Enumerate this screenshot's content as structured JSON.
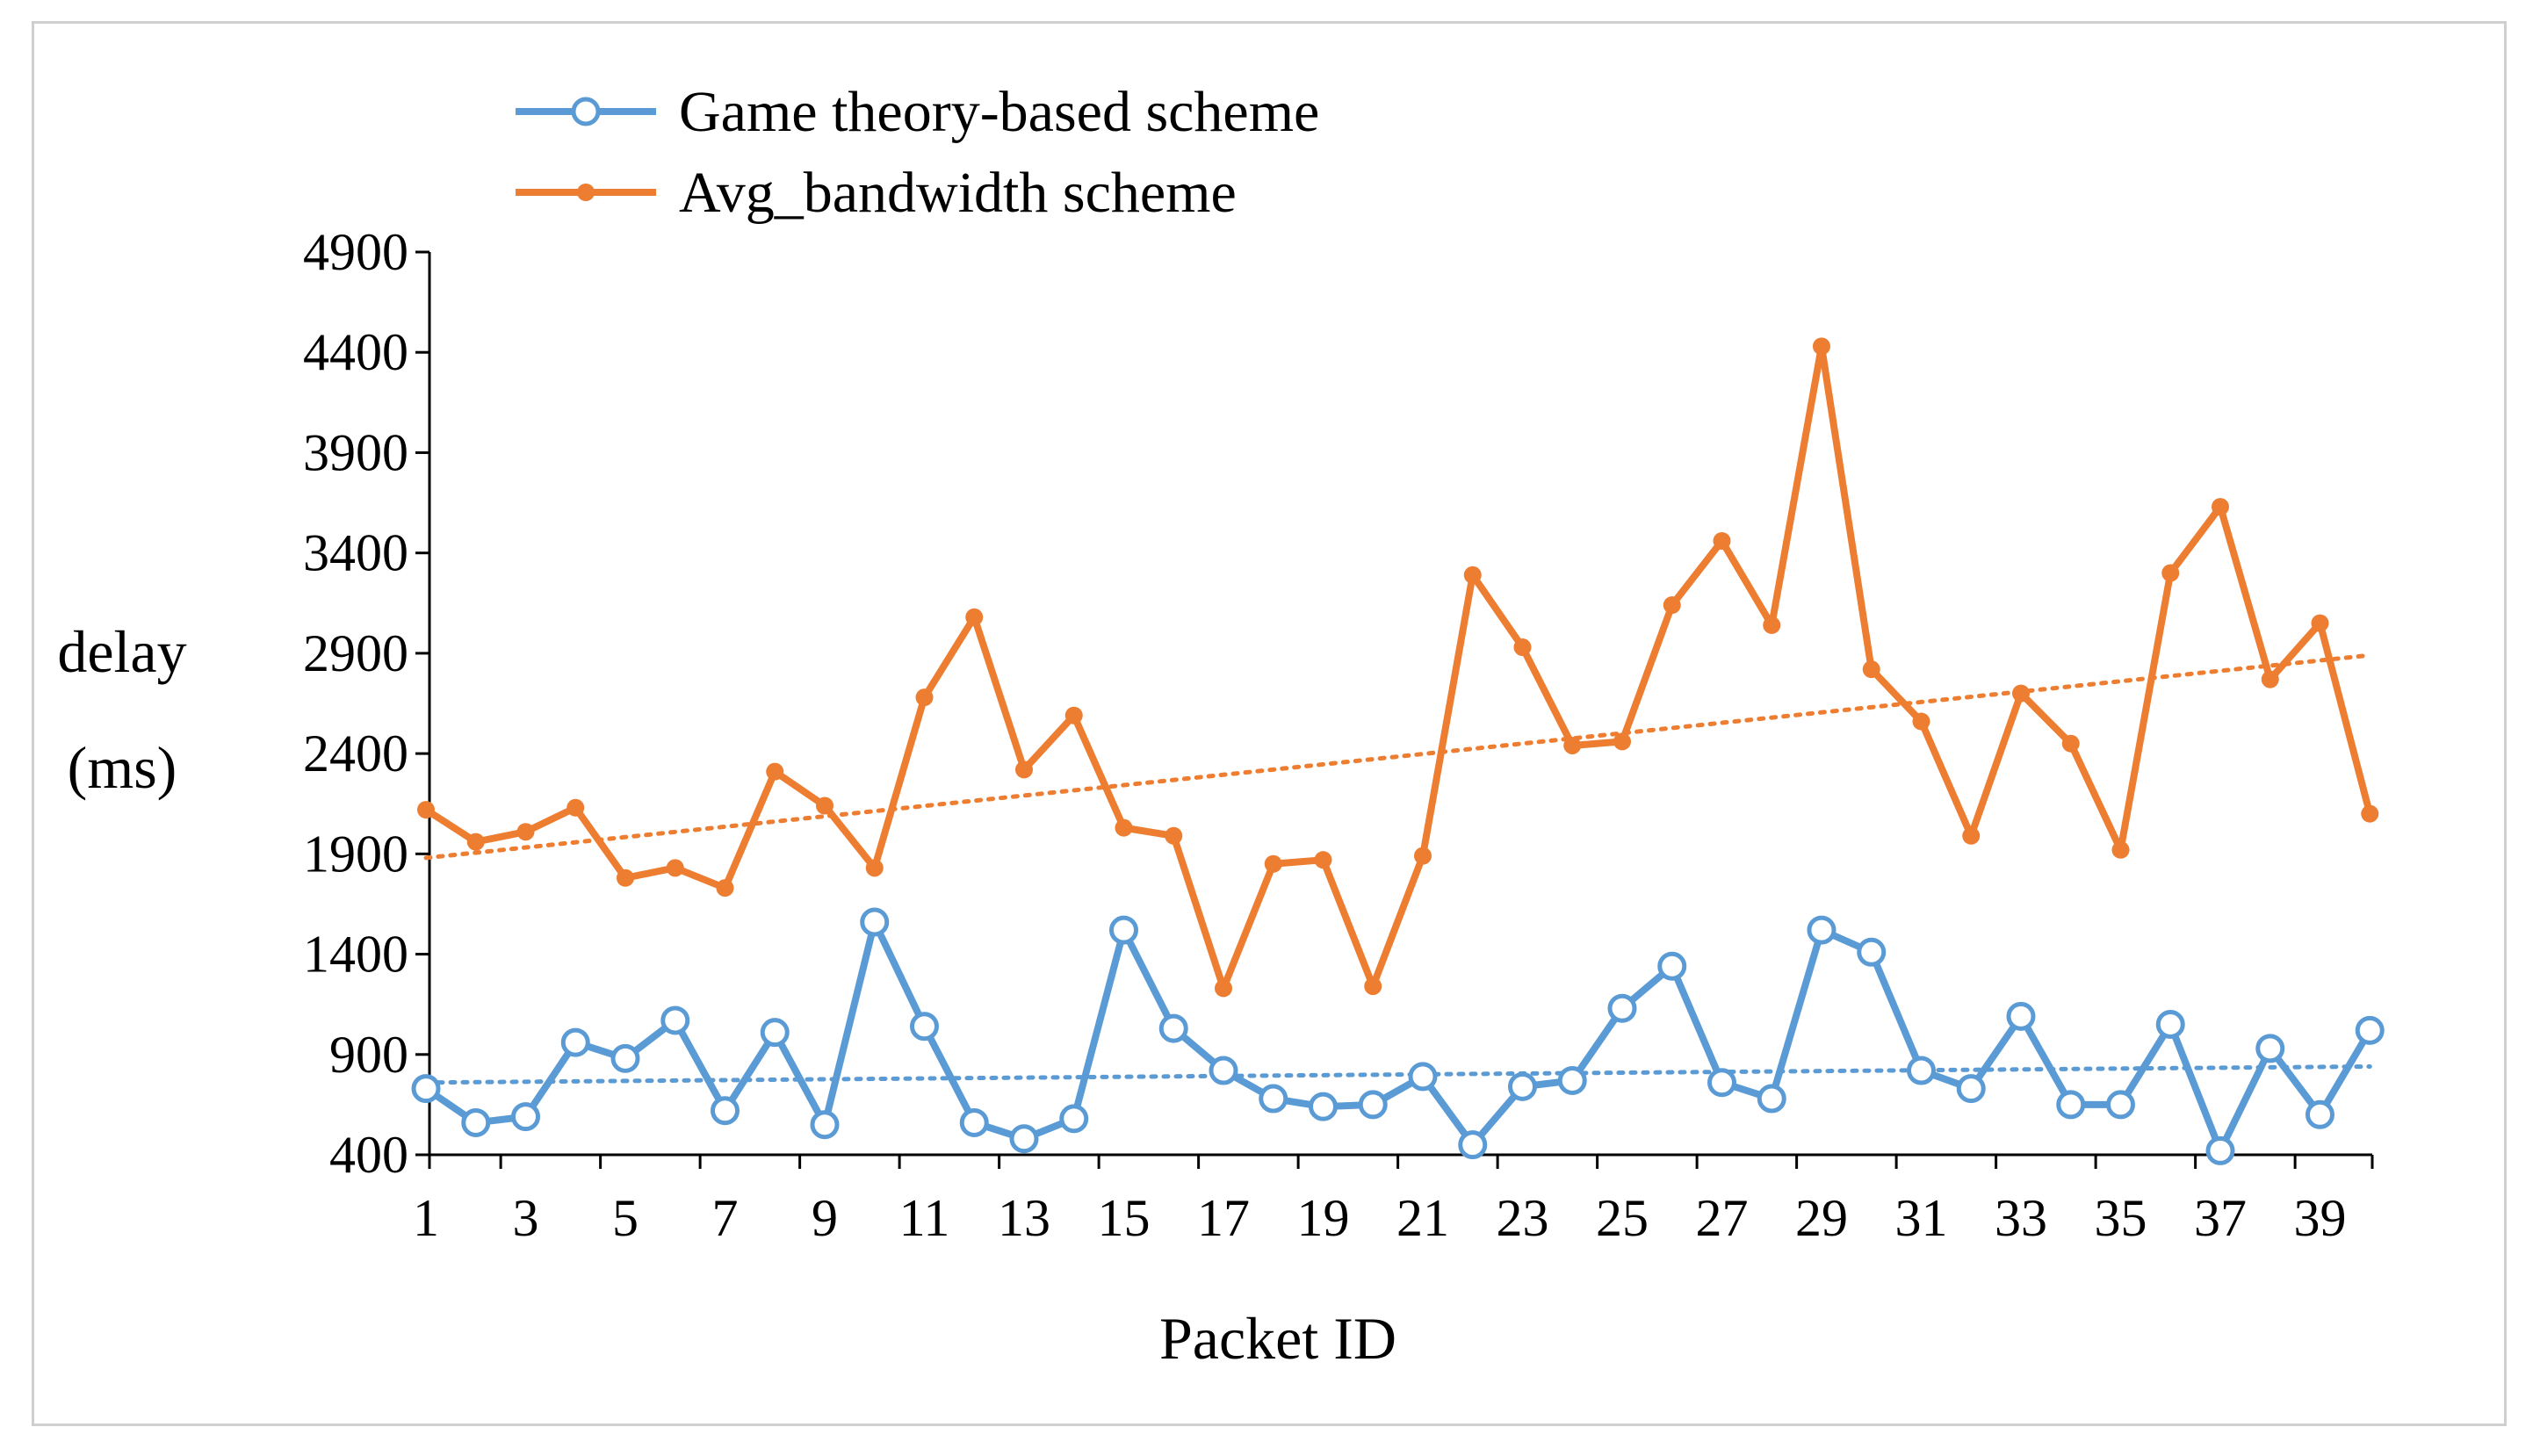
{
  "chart_data": {
    "type": "line",
    "title": "",
    "xlabel": "Packet ID",
    "ylabel_lines": [
      "delay",
      "(ms)"
    ],
    "x": [
      1,
      2,
      3,
      4,
      5,
      6,
      7,
      8,
      9,
      10,
      11,
      12,
      13,
      14,
      15,
      16,
      17,
      18,
      19,
      20,
      21,
      22,
      23,
      24,
      25,
      26,
      27,
      28,
      29,
      30,
      31,
      32,
      33,
      34,
      35,
      36,
      37,
      38,
      39,
      40
    ],
    "x_tick_labels": [
      "1",
      "3",
      "5",
      "7",
      "9",
      "11",
      "13",
      "15",
      "17",
      "19",
      "21",
      "23",
      "25",
      "27",
      "29",
      "31",
      "33",
      "35",
      "37",
      "39"
    ],
    "x_tick_values": [
      1,
      3,
      5,
      7,
      9,
      11,
      13,
      15,
      17,
      19,
      21,
      23,
      25,
      27,
      29,
      31,
      33,
      35,
      37,
      39
    ],
    "y_tick_labels": [
      "400",
      "900",
      "1400",
      "1900",
      "2400",
      "2900",
      "3400",
      "3900",
      "4400",
      "4900"
    ],
    "y_tick_values": [
      400,
      900,
      1400,
      1900,
      2400,
      2900,
      3400,
      3900,
      4400,
      4900
    ],
    "ylim": [
      400,
      4900
    ],
    "xlim": [
      1,
      40
    ],
    "grid": false,
    "legend_position": "top-center",
    "series": [
      {
        "name": "Game theory-based scheme",
        "color": "#5b9bd5",
        "marker": "open-circle",
        "values": [
          730,
          560,
          590,
          960,
          880,
          1070,
          620,
          1010,
          550,
          1560,
          1040,
          560,
          480,
          580,
          1520,
          1030,
          820,
          680,
          640,
          650,
          790,
          450,
          740,
          770,
          1130,
          1340,
          760,
          680,
          1520,
          1410,
          820,
          730,
          1090,
          650,
          650,
          1050,
          420,
          930,
          600,
          1020
        ],
        "trendline": {
          "start": 760,
          "end": 840
        }
      },
      {
        "name": "Avg_bandwidth scheme",
        "color": "#ed7d31",
        "marker": "filled-circle",
        "values": [
          2120,
          1960,
          2010,
          2130,
          1780,
          1830,
          1730,
          2310,
          2140,
          1830,
          2680,
          3080,
          2320,
          2590,
          2030,
          1990,
          1230,
          1850,
          1870,
          1240,
          1890,
          3290,
          2930,
          2440,
          2460,
          3140,
          3460,
          3040,
          4430,
          2820,
          2560,
          1990,
          2700,
          2450,
          1920,
          3300,
          3630,
          2770,
          3050,
          2100
        ],
        "trendline": {
          "start": 1880,
          "end": 2890
        }
      }
    ]
  }
}
